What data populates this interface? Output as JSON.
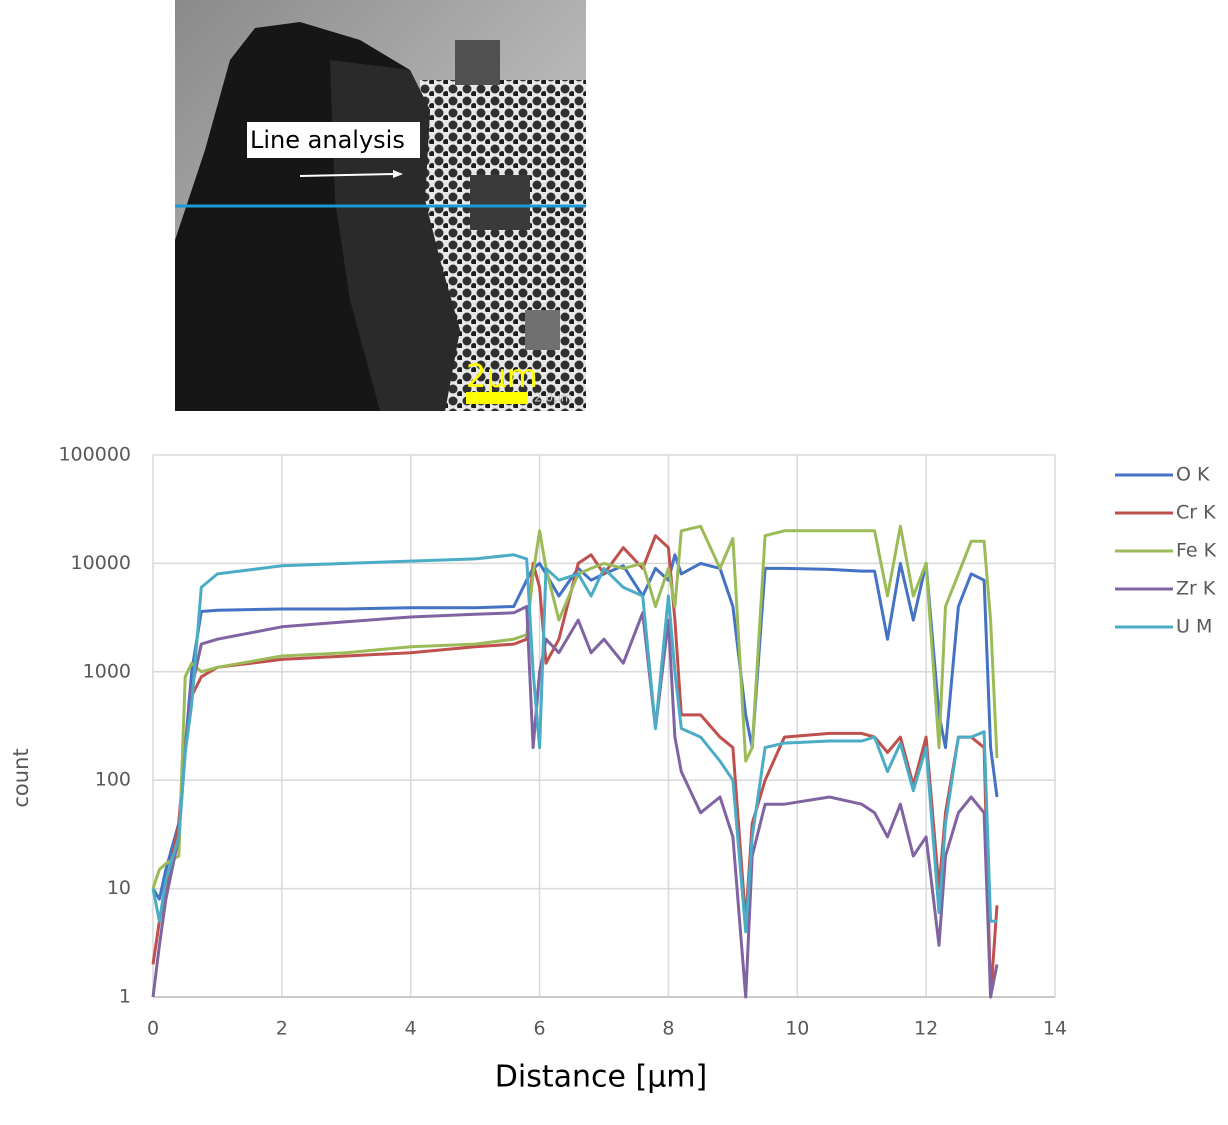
{
  "image": {
    "label": "Line analysis",
    "scale_bar": "2μm",
    "scale_text": "2.0μm"
  },
  "chart_data": {
    "type": "line",
    "ylabel": "count",
    "xlabel": "Distance [μm]",
    "log_y": true,
    "grid": true,
    "legend": "right",
    "xlim": [
      0,
      14
    ],
    "xticks": [
      0,
      2,
      4,
      6,
      8,
      10,
      12,
      14
    ],
    "ylim": [
      1,
      100000
    ],
    "yticks": [
      1,
      10,
      100,
      1000,
      10000,
      100000
    ],
    "x": [
      0,
      0.1,
      0.2,
      0.4,
      0.5,
      0.6,
      0.75,
      1,
      2,
      3,
      4,
      5,
      5.6,
      5.8,
      5.9,
      6,
      6.1,
      6.3,
      6.6,
      6.8,
      7,
      7.3,
      7.6,
      7.8,
      8,
      8.1,
      8.2,
      8.5,
      8.8,
      9,
      9.2,
      9.3,
      9.5,
      9.8,
      10.5,
      11,
      11.2,
      11.4,
      11.6,
      11.8,
      12,
      12.2,
      12.3,
      12.5,
      12.7,
      12.9,
      13,
      13.1
    ],
    "series": [
      {
        "name": "O K",
        "color": "#4472c4",
        "values": [
          10,
          8,
          15,
          40,
          200,
          1000,
          3600,
          3700,
          3800,
          3800,
          3900,
          3900,
          4000,
          7000,
          9000,
          10000,
          8000,
          5000,
          9000,
          7000,
          8000,
          9500,
          5000,
          9000,
          7000,
          12000,
          8000,
          10000,
          9000,
          4000,
          400,
          200,
          9000,
          9000,
          8800,
          8500,
          8500,
          2000,
          10000,
          3000,
          10000,
          400,
          200,
          4000,
          8000,
          7000,
          200,
          70
        ]
      },
      {
        "name": "Cr K",
        "color": "#c0504d",
        "values": [
          2,
          5,
          10,
          40,
          200,
          600,
          900,
          1100,
          1300,
          1400,
          1500,
          1700,
          1800,
          2000,
          10000,
          6000,
          1200,
          2000,
          10000,
          12000,
          8000,
          14000,
          9000,
          18000,
          14000,
          3000,
          400,
          400,
          250,
          200,
          5,
          40,
          100,
          250,
          270,
          270,
          250,
          180,
          250,
          90,
          250,
          10,
          50,
          250,
          250,
          200,
          1,
          7
        ]
      },
      {
        "name": "Fe K",
        "color": "#9bbb59",
        "values": [
          10,
          15,
          17,
          20,
          900,
          1200,
          1000,
          1100,
          1400,
          1500,
          1700,
          1800,
          2000,
          2200,
          8000,
          20000,
          9000,
          3000,
          8000,
          9000,
          10000,
          9000,
          10000,
          4000,
          9000,
          4000,
          20000,
          22000,
          9000,
          17000,
          150,
          200,
          18000,
          20000,
          20000,
          20000,
          20000,
          5000,
          22000,
          5000,
          10000,
          200,
          4000,
          8000,
          16000,
          16000,
          3000,
          160
        ]
      },
      {
        "name": "Zr K",
        "color": "#8064a2",
        "values": [
          1,
          3,
          8,
          30,
          180,
          700,
          1800,
          2000,
          2600,
          2900,
          3200,
          3400,
          3500,
          4000,
          200,
          1000,
          2000,
          1500,
          3000,
          1500,
          2000,
          1200,
          3500,
          300,
          3000,
          250,
          120,
          50,
          70,
          30,
          1,
          20,
          60,
          60,
          70,
          60,
          50,
          30,
          60,
          20,
          30,
          3,
          20,
          50,
          70,
          50,
          1,
          2
        ]
      },
      {
        "name": "U M",
        "color": "#4bacc6",
        "values": [
          10,
          5,
          12,
          30,
          180,
          500,
          6000,
          8000,
          9500,
          10000,
          10500,
          11000,
          12000,
          11000,
          1000,
          200,
          9000,
          7000,
          8000,
          5000,
          9000,
          6000,
          5000,
          300,
          5000,
          1000,
          300,
          250,
          150,
          100,
          4,
          30,
          200,
          220,
          230,
          230,
          250,
          120,
          220,
          80,
          200,
          6,
          40,
          250,
          250,
          280,
          5,
          5
        ]
      }
    ]
  }
}
